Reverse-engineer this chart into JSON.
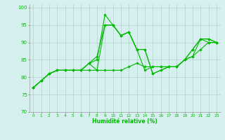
{
  "xlabel": "Humidité relative (%)",
  "bg_color": "#d6f0f0",
  "grid_color": "#b0c8c8",
  "line_color": "#00bb00",
  "xlim": [
    -0.5,
    23.5
  ],
  "ylim": [
    70,
    101
  ],
  "yticks": [
    70,
    75,
    80,
    85,
    90,
    95,
    100
  ],
  "xticks": [
    0,
    1,
    2,
    3,
    4,
    5,
    6,
    7,
    8,
    9,
    10,
    11,
    12,
    13,
    14,
    15,
    16,
    17,
    18,
    19,
    20,
    21,
    22,
    23
  ],
  "lines": [
    [
      77,
      79,
      81,
      82,
      82,
      82,
      82,
      82,
      82,
      82,
      82,
      82,
      83,
      84,
      83,
      83,
      83,
      83,
      83,
      85,
      86,
      88,
      90,
      90
    ],
    [
      77,
      79,
      81,
      82,
      82,
      82,
      82,
      84,
      86,
      95,
      95,
      92,
      93,
      88,
      88,
      81,
      82,
      83,
      83,
      85,
      88,
      91,
      90,
      90
    ],
    [
      77,
      79,
      81,
      82,
      82,
      82,
      82,
      84,
      85,
      98,
      95,
      92,
      93,
      88,
      88,
      81,
      82,
      83,
      83,
      85,
      86,
      91,
      91,
      90
    ],
    [
      77,
      79,
      81,
      82,
      82,
      82,
      82,
      84,
      82,
      95,
      95,
      92,
      93,
      88,
      82,
      83,
      83,
      83,
      83,
      85,
      88,
      91,
      91,
      90
    ]
  ]
}
